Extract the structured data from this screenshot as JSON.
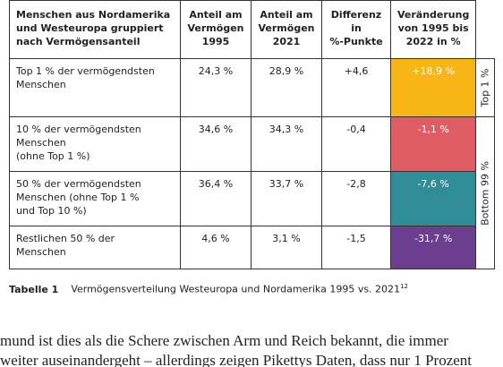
{
  "table": {
    "header": [
      [
        "Menschen aus Nordamerika",
        "und Westeuropa gruppiert",
        "nach Vermögensanteil"
      ],
      [
        "Anteil am",
        "Vermögen",
        "1995"
      ],
      [
        "Anteil am",
        "Vermögen",
        "2021"
      ],
      [
        "Differenz",
        "in",
        "%-Punkte"
      ],
      [
        "Veränderung",
        "von 1995 bis",
        "2022 in %"
      ]
    ],
    "rows": [
      [
        [
          "Top 1 % der vermögendsten",
          "Menschen"
        ],
        [
          "24,3 %"
        ],
        [
          "28,9 %"
        ],
        [
          "+4,6"
        ],
        [
          "+18,9 %"
        ]
      ],
      [
        [
          "10 % der vermögendsten",
          "Menschen",
          "(ohne Top 1 %)"
        ],
        [
          "34,6 %"
        ],
        [
          "34,3 %"
        ],
        [
          "-0,4"
        ],
        [
          "-1,1 %"
        ]
      ],
      [
        [
          "50 % der vermögendsten",
          "Menschen (ohne Top 1 %",
          "und Top 10 %)"
        ],
        [
          "36,4 %"
        ],
        [
          "33,7 %"
        ],
        [
          "-2,8"
        ],
        [
          "-7,6 %"
        ]
      ],
      [
        [
          "Restlichen 50 % der",
          "Menschen"
        ],
        [
          "4,6 %"
        ],
        [
          "3,1 %"
        ],
        [
          "-1,5"
        ],
        [
          "-31,7 %"
        ]
      ]
    ],
    "side_labels": [
      "Top 1 %",
      "Bottom 99 %"
    ]
  },
  "caption": {
    "label": "Tabelle 1",
    "text": "Vermögensverteilung Westeuropa und Nordamerika 1995 vs. 2021",
    "footnote": "12"
  },
  "body": [
    "mund ist dies als die Schere zwischen Arm und Reich bekannt, die immer",
    "weiter auseinandergeht – allerdings zeigen Pikettys Daten, dass nur 1 Prozent"
  ]
}
